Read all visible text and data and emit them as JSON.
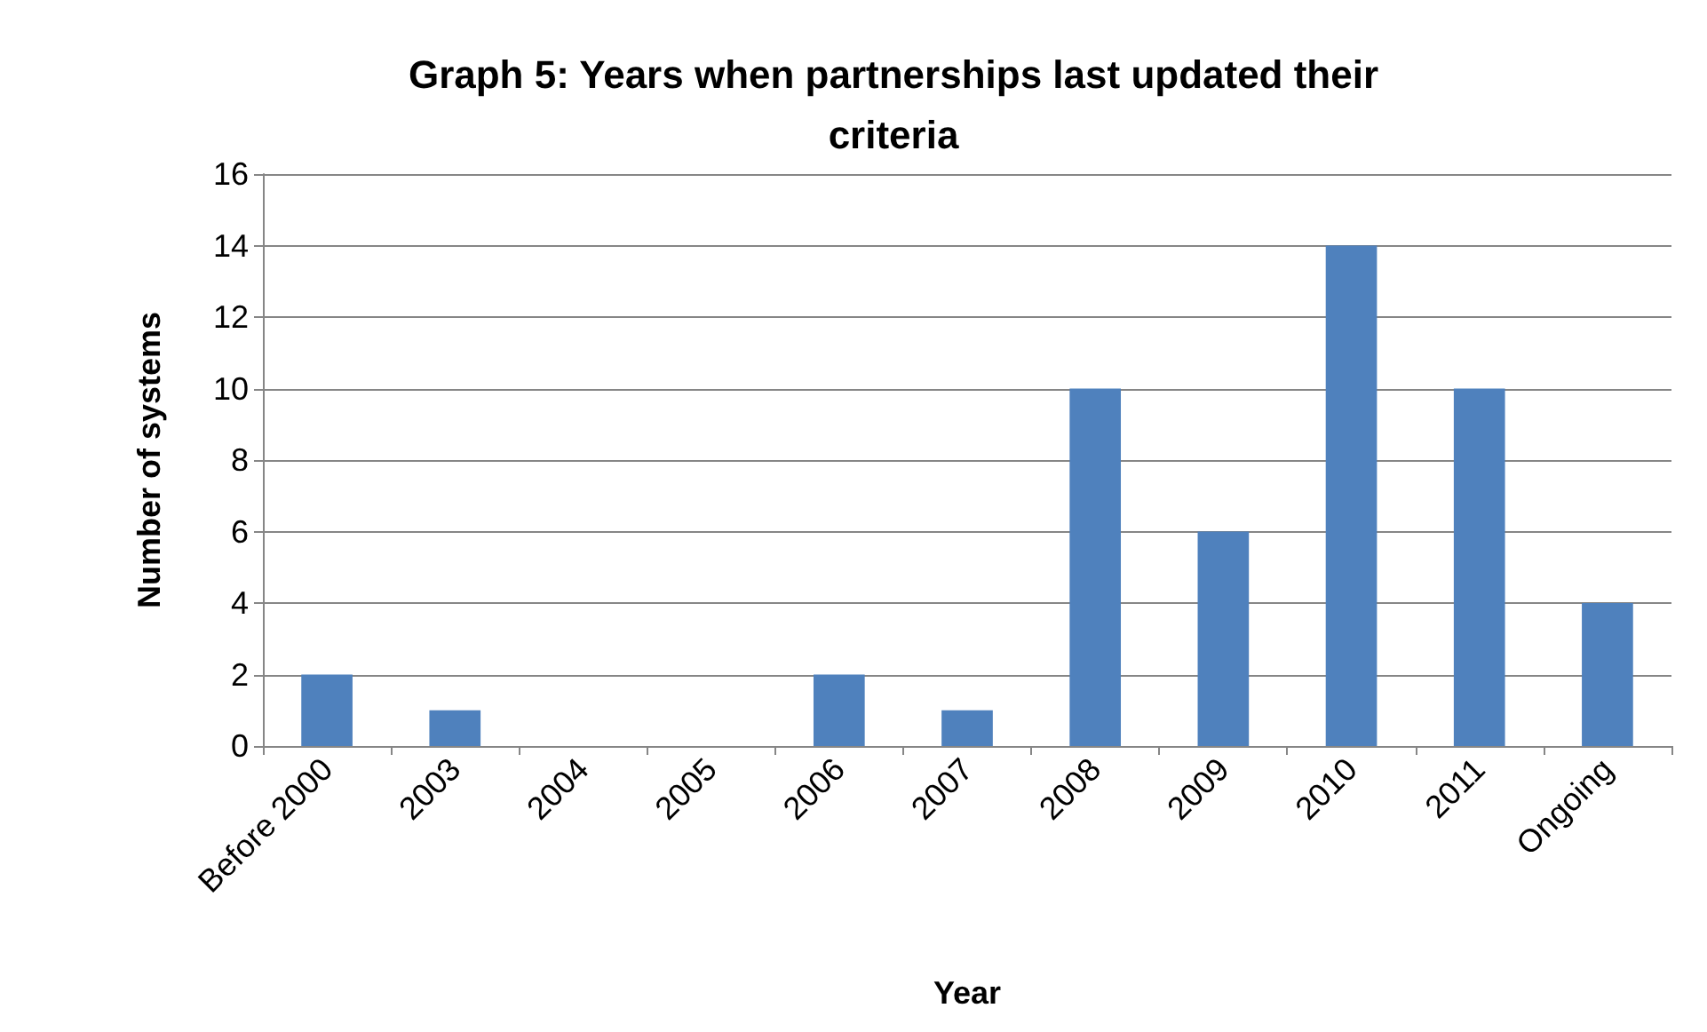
{
  "chart_data": {
    "type": "bar",
    "title": "Graph 5: Years when partnerships last updated their\ncriteria",
    "xlabel": "Year",
    "ylabel": "Number of systems",
    "categories": [
      "Before 2000",
      "2003",
      "2004",
      "2005",
      "2006",
      "2007",
      "2008",
      "2009",
      "2010",
      "2011",
      "Ongoing"
    ],
    "values": [
      2,
      1,
      0,
      0,
      2,
      1,
      10,
      6,
      14,
      10,
      4
    ],
    "color": "#4f81bd",
    "ylim": [
      0,
      16
    ],
    "yticks": [
      0,
      2,
      4,
      6,
      8,
      10,
      12,
      14,
      16
    ],
    "grid": "y"
  }
}
